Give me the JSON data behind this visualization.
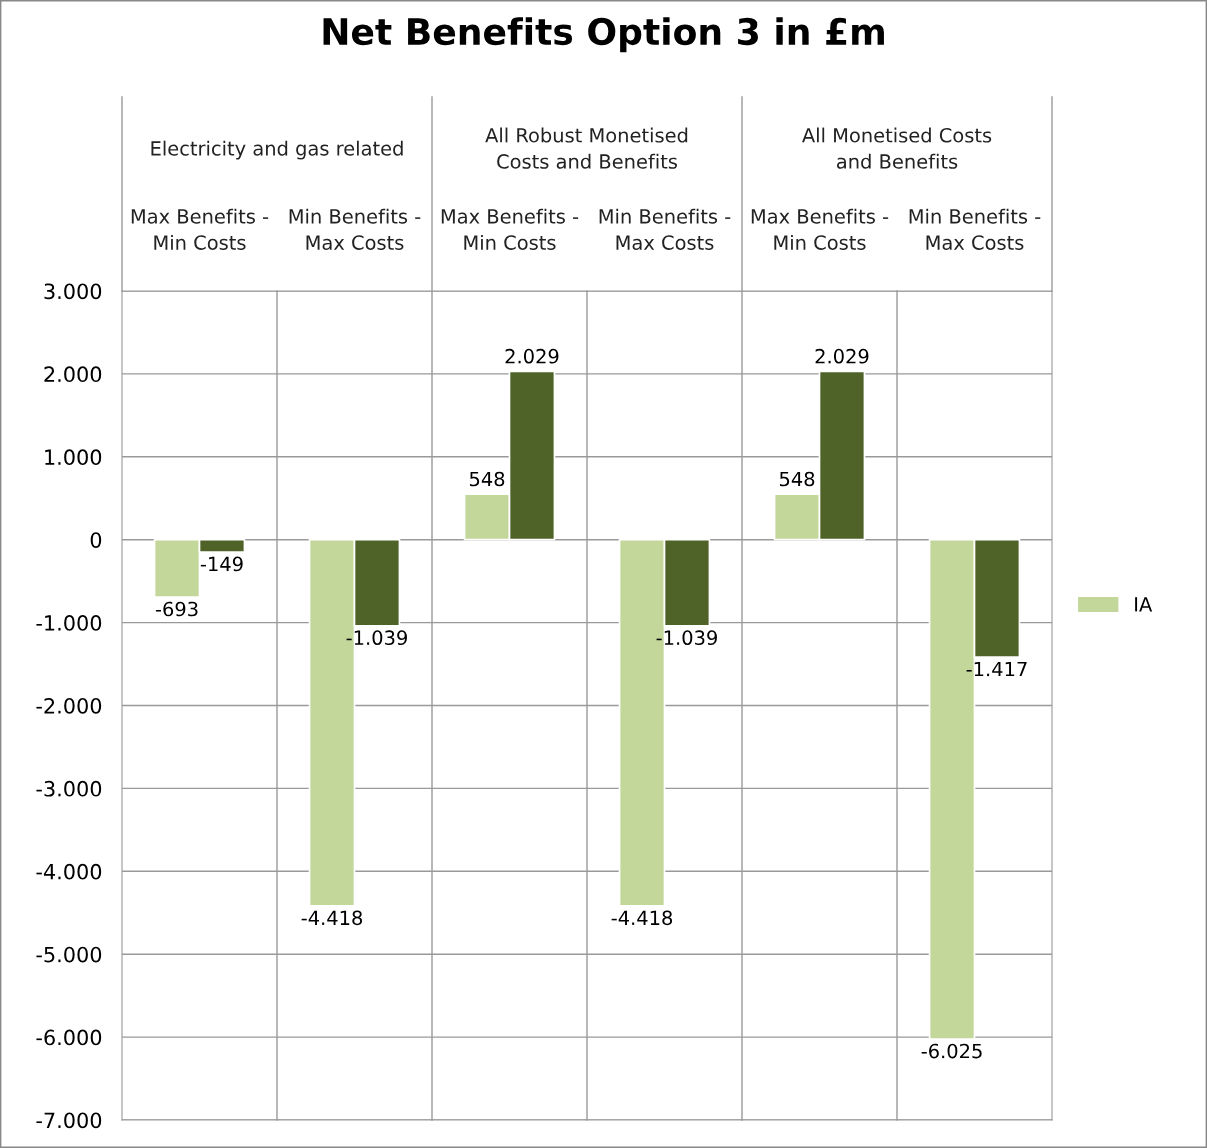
{
  "chart_data": {
    "type": "bar",
    "title": "Net Benefits Option 3 in £m",
    "categories": [
      "Max Benefits - Min Costs",
      "Min Benefits - Max Costs",
      "Max Benefits - Min Costs",
      "Min Benefits - Max Costs",
      "Max Benefits - Min Costs",
      "Min Benefits - Max Costs"
    ],
    "annotations": [
      "Electricity and gas related",
      "All Robust Monetised Costs and Benefits",
      "All Monetised Costs and Benefits"
    ],
    "series": [
      {
        "name": "IA",
        "color": "#c4d79b",
        "values": [
          -693,
          -4418,
          548,
          -4418,
          548,
          -6025
        ],
        "value_labels": [
          "-693",
          "-4.418",
          "548",
          "-4.418",
          "548",
          "-6.025"
        ]
      },
      {
        "color": "#4f6228",
        "values": [
          -149,
          -1039,
          2029,
          -1039,
          2029,
          -1417
        ],
        "value_labels": [
          "-149",
          "-1.039",
          "2.029",
          "-1.039",
          "2.029",
          "-1.417"
        ]
      }
    ],
    "ylim": [
      -7000,
      3000
    ],
    "yticks": [
      {
        "value": 3000,
        "label": "3.000"
      },
      {
        "value": 2000,
        "label": "2.000"
      },
      {
        "value": 1000,
        "label": "1.000"
      },
      {
        "value": 0,
        "label": "0"
      },
      {
        "value": -1000,
        "label": "-1.000"
      },
      {
        "value": -2000,
        "label": "-2.000"
      },
      {
        "value": -3000,
        "label": "-3.000"
      },
      {
        "value": -4000,
        "label": "-4.000"
      },
      {
        "value": -5000,
        "label": "-5.000"
      },
      {
        "value": -6000,
        "label": "-6.000"
      },
      {
        "value": -7000,
        "label": "-7.000"
      }
    ],
    "grid": "y",
    "legend": "right"
  }
}
